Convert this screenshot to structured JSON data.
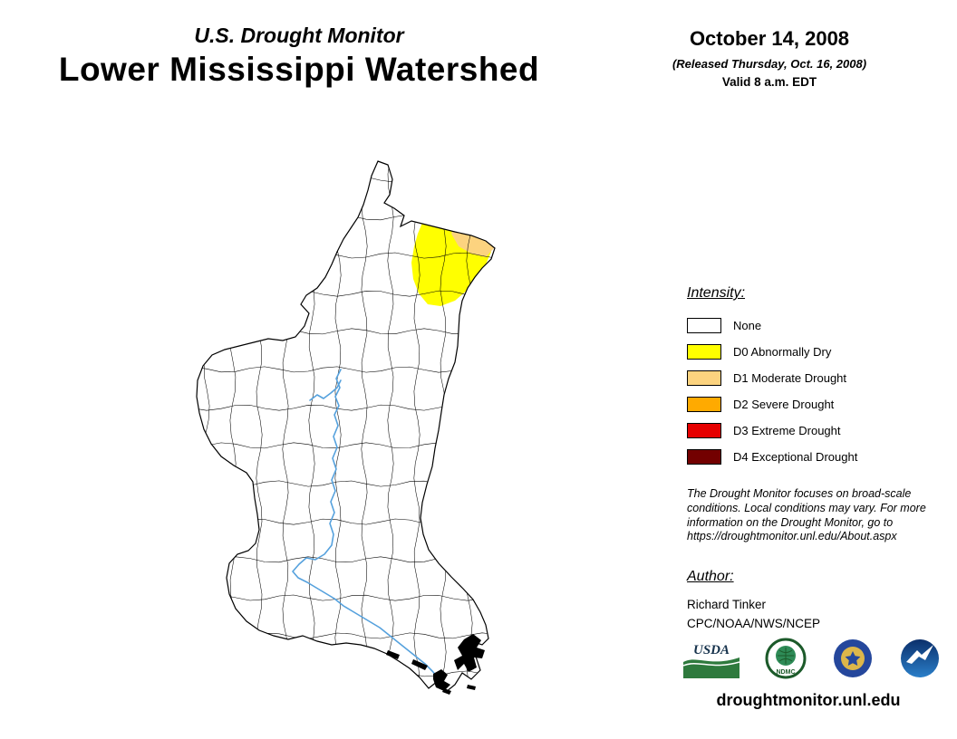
{
  "header": {
    "supertitle": "U.S. Drought Monitor",
    "title": "Lower Mississippi Watershed",
    "date": "October 14, 2008",
    "released": "(Released Thursday, Oct. 16, 2008)",
    "valid": "Valid 8 a.m. EDT"
  },
  "legend": {
    "heading": "Intensity:",
    "items": [
      {
        "label": "None",
        "color": "#FFFFFF"
      },
      {
        "label": "D0 Abnormally Dry",
        "color": "#FFFF00"
      },
      {
        "label": "D1 Moderate Drought",
        "color": "#FCD37F"
      },
      {
        "label": "D2 Severe Drought",
        "color": "#FFAA00"
      },
      {
        "label": "D3 Extreme Drought",
        "color": "#E60000"
      },
      {
        "label": "D4 Exceptional Drought",
        "color": "#730000"
      }
    ]
  },
  "map": {
    "region": "Lower Mississippi Watershed",
    "drought_areas": [
      {
        "category": "D0",
        "location": "northeast portion of watershed",
        "color": "#FFFF00"
      },
      {
        "category": "D1",
        "location": "small patch at northeast edge",
        "color": "#FCD37F"
      }
    ],
    "river_color": "#55A1DD"
  },
  "notes": {
    "disclaimer": "The Drought Monitor focuses on broad-scale conditions. Local conditions may vary. For more information on the Drought Monitor, go to https://droughtmonitor.unl.edu/About.aspx"
  },
  "author": {
    "heading": "Author:",
    "name": "Richard Tinker",
    "organization": "CPC/NOAA/NWS/NCEP"
  },
  "logos": [
    {
      "name": "usda-logo",
      "label": "USDA"
    },
    {
      "name": "ndmc-logo",
      "label": "NDMC"
    },
    {
      "name": "commerce-seal-logo",
      "label": ""
    },
    {
      "name": "noaa-logo",
      "label": ""
    }
  ],
  "footer": {
    "url": "droughtmonitor.unl.edu"
  }
}
